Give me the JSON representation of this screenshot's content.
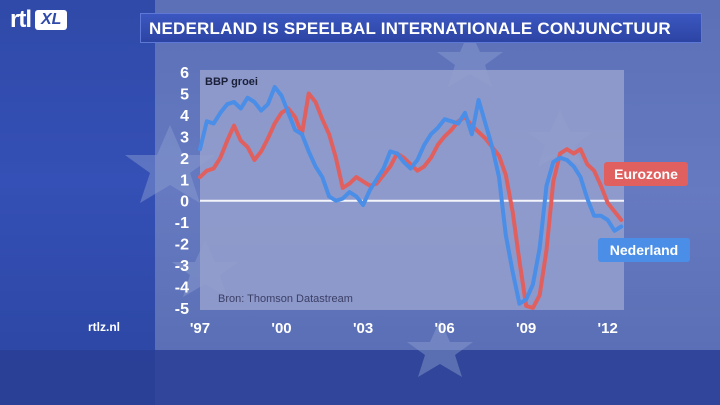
{
  "header": {
    "logo_rtl": "rtl",
    "logo_xl": "XL",
    "title": "NEDERLAND IS SPEELBAL INTERNATIONALE CONJUNCTUUR"
  },
  "footer": {
    "url": "rtlz.nl"
  },
  "colors": {
    "eurozone": "#e06060",
    "nederland": "#4a8ee8",
    "plot_bg": "#8f9bc8",
    "label_bg_eurozone": "#e06060",
    "label_bg_nederland": "#4a8ee8"
  },
  "chart_data": {
    "type": "line",
    "title": "",
    "ylabel": "BBP groei",
    "source": "Bron: Thomson Datastream",
    "ylim": [
      -5,
      6
    ],
    "xlim": [
      1997,
      2012.6
    ],
    "y_ticks": [
      -5,
      -4,
      -3,
      -2,
      -1,
      0,
      1,
      2,
      3,
      4,
      5,
      6
    ],
    "x_ticks": [
      {
        "value": 1997,
        "label": "'97"
      },
      {
        "value": 2000,
        "label": "'00"
      },
      {
        "value": 2003,
        "label": "'03"
      },
      {
        "value": 2006,
        "label": "'06"
      },
      {
        "value": 2009,
        "label": "'09"
      },
      {
        "value": 2012,
        "label": "'12"
      }
    ],
    "zero_line": true,
    "series": [
      {
        "name": "Eurozone",
        "x": [
          1997.0,
          1997.25,
          1997.5,
          1997.75,
          1998.0,
          1998.25,
          1998.5,
          1998.75,
          1999.0,
          1999.25,
          1999.5,
          1999.75,
          2000.0,
          2000.25,
          2000.5,
          2000.75,
          2001.0,
          2001.25,
          2001.5,
          2001.75,
          2002.0,
          2002.25,
          2002.5,
          2002.75,
          2003.0,
          2003.25,
          2003.5,
          2003.75,
          2004.0,
          2004.25,
          2004.5,
          2004.75,
          2005.0,
          2005.25,
          2005.5,
          2005.75,
          2006.0,
          2006.25,
          2006.5,
          2006.75,
          2007.0,
          2007.25,
          2007.5,
          2007.75,
          2008.0,
          2008.25,
          2008.5,
          2008.75,
          2009.0,
          2009.25,
          2009.5,
          2009.75,
          2010.0,
          2010.25,
          2010.5,
          2010.75,
          2011.0,
          2011.25,
          2011.5,
          2011.75,
          2012.0,
          2012.25,
          2012.5
        ],
        "values": [
          1.1,
          1.4,
          1.5,
          2.0,
          2.8,
          3.5,
          2.8,
          2.5,
          1.9,
          2.3,
          2.9,
          3.6,
          4.1,
          4.3,
          3.9,
          3.1,
          5.0,
          4.6,
          3.8,
          3.1,
          2.0,
          0.6,
          0.8,
          1.1,
          0.9,
          0.7,
          0.8,
          1.2,
          1.6,
          2.2,
          2.0,
          1.7,
          1.4,
          1.6,
          2.0,
          2.6,
          3.0,
          3.3,
          3.7,
          3.9,
          3.5,
          3.2,
          2.9,
          2.5,
          2.1,
          1.2,
          -0.5,
          -2.8,
          -4.9,
          -5.0,
          -4.4,
          -2.3,
          0.9,
          2.2,
          2.4,
          2.2,
          2.4,
          1.7,
          1.4,
          0.7,
          -0.1,
          -0.5,
          -0.9
        ]
      },
      {
        "name": "Nederland",
        "x": [
          1997.0,
          1997.25,
          1997.5,
          1997.75,
          1998.0,
          1998.25,
          1998.5,
          1998.75,
          1999.0,
          1999.25,
          1999.5,
          1999.75,
          2000.0,
          2000.25,
          2000.5,
          2000.75,
          2001.0,
          2001.25,
          2001.5,
          2001.75,
          2002.0,
          2002.25,
          2002.5,
          2002.75,
          2003.0,
          2003.25,
          2003.5,
          2003.75,
          2004.0,
          2004.25,
          2004.5,
          2004.75,
          2005.0,
          2005.25,
          2005.5,
          2005.75,
          2006.0,
          2006.25,
          2006.5,
          2006.75,
          2007.0,
          2007.25,
          2007.5,
          2007.75,
          2008.0,
          2008.25,
          2008.5,
          2008.75,
          2009.0,
          2009.25,
          2009.5,
          2009.75,
          2010.0,
          2010.25,
          2010.5,
          2010.75,
          2011.0,
          2011.25,
          2011.5,
          2011.75,
          2012.0,
          2012.25,
          2012.5
        ],
        "values": [
          2.4,
          3.7,
          3.6,
          4.1,
          4.5,
          4.6,
          4.3,
          4.8,
          4.6,
          4.2,
          4.5,
          5.3,
          4.9,
          4.1,
          3.3,
          3.1,
          2.3,
          1.6,
          1.1,
          0.2,
          0.0,
          0.1,
          0.4,
          0.2,
          -0.2,
          0.5,
          1.0,
          1.5,
          2.3,
          2.2,
          1.8,
          1.5,
          1.9,
          2.6,
          3.1,
          3.4,
          3.8,
          3.7,
          3.6,
          4.1,
          3.1,
          4.7,
          3.6,
          2.5,
          1.1,
          -1.6,
          -3.3,
          -4.8,
          -4.6,
          -3.9,
          -2.2,
          0.7,
          1.8,
          2.0,
          1.9,
          1.6,
          1.1,
          0.1,
          -0.7,
          -0.7,
          -0.9,
          -1.4,
          -1.2
        ]
      }
    ],
    "series_labels": [
      "Eurozone",
      "Nederland"
    ]
  }
}
